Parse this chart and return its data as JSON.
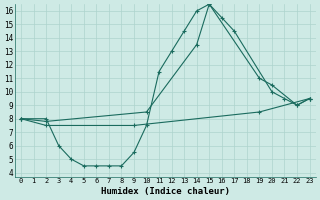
{
  "bg_color": "#ceeae5",
  "line_color": "#1a6b5e",
  "grid_color": "#aed4ce",
  "xlabel": "Humidex (Indice chaleur)",
  "ylim": [
    4,
    16
  ],
  "xlim": [
    -0.5,
    23.5
  ],
  "yticks": [
    4,
    5,
    6,
    7,
    8,
    9,
    10,
    11,
    12,
    13,
    14,
    15,
    16
  ],
  "xticks": [
    0,
    1,
    2,
    3,
    4,
    5,
    6,
    7,
    8,
    9,
    10,
    11,
    12,
    13,
    14,
    15,
    16,
    17,
    18,
    19,
    20,
    21,
    22,
    23
  ],
  "xtick_labels": [
    "0",
    "1",
    "2",
    "3",
    "4",
    "5",
    "6",
    "7",
    "8",
    "9",
    "10",
    "11",
    "12",
    "13",
    "14",
    "15",
    "16",
    "17",
    "18",
    "19",
    "20",
    "21",
    "22",
    "23"
  ],
  "line1_x": [
    0,
    2,
    3,
    4,
    5,
    6,
    7,
    8,
    9,
    10,
    11,
    12,
    13,
    14,
    15,
    16,
    17,
    20,
    21,
    22,
    23
  ],
  "line1_y": [
    8,
    8,
    6,
    5,
    4.5,
    4.5,
    4.5,
    4.5,
    5.5,
    7.5,
    11.5,
    13,
    14.5,
    16,
    16.5,
    15.5,
    14.5,
    10,
    9.5,
    9,
    9.5
  ],
  "line2_x": [
    0,
    2,
    10,
    14,
    15,
    19,
    20,
    22,
    23
  ],
  "line2_y": [
    8,
    7.8,
    8.5,
    13.5,
    16.5,
    11,
    10.5,
    9,
    9.5
  ],
  "line3_x": [
    0,
    2,
    9,
    19,
    23
  ],
  "line3_y": [
    8,
    7.5,
    7.5,
    8.5,
    9.5
  ]
}
